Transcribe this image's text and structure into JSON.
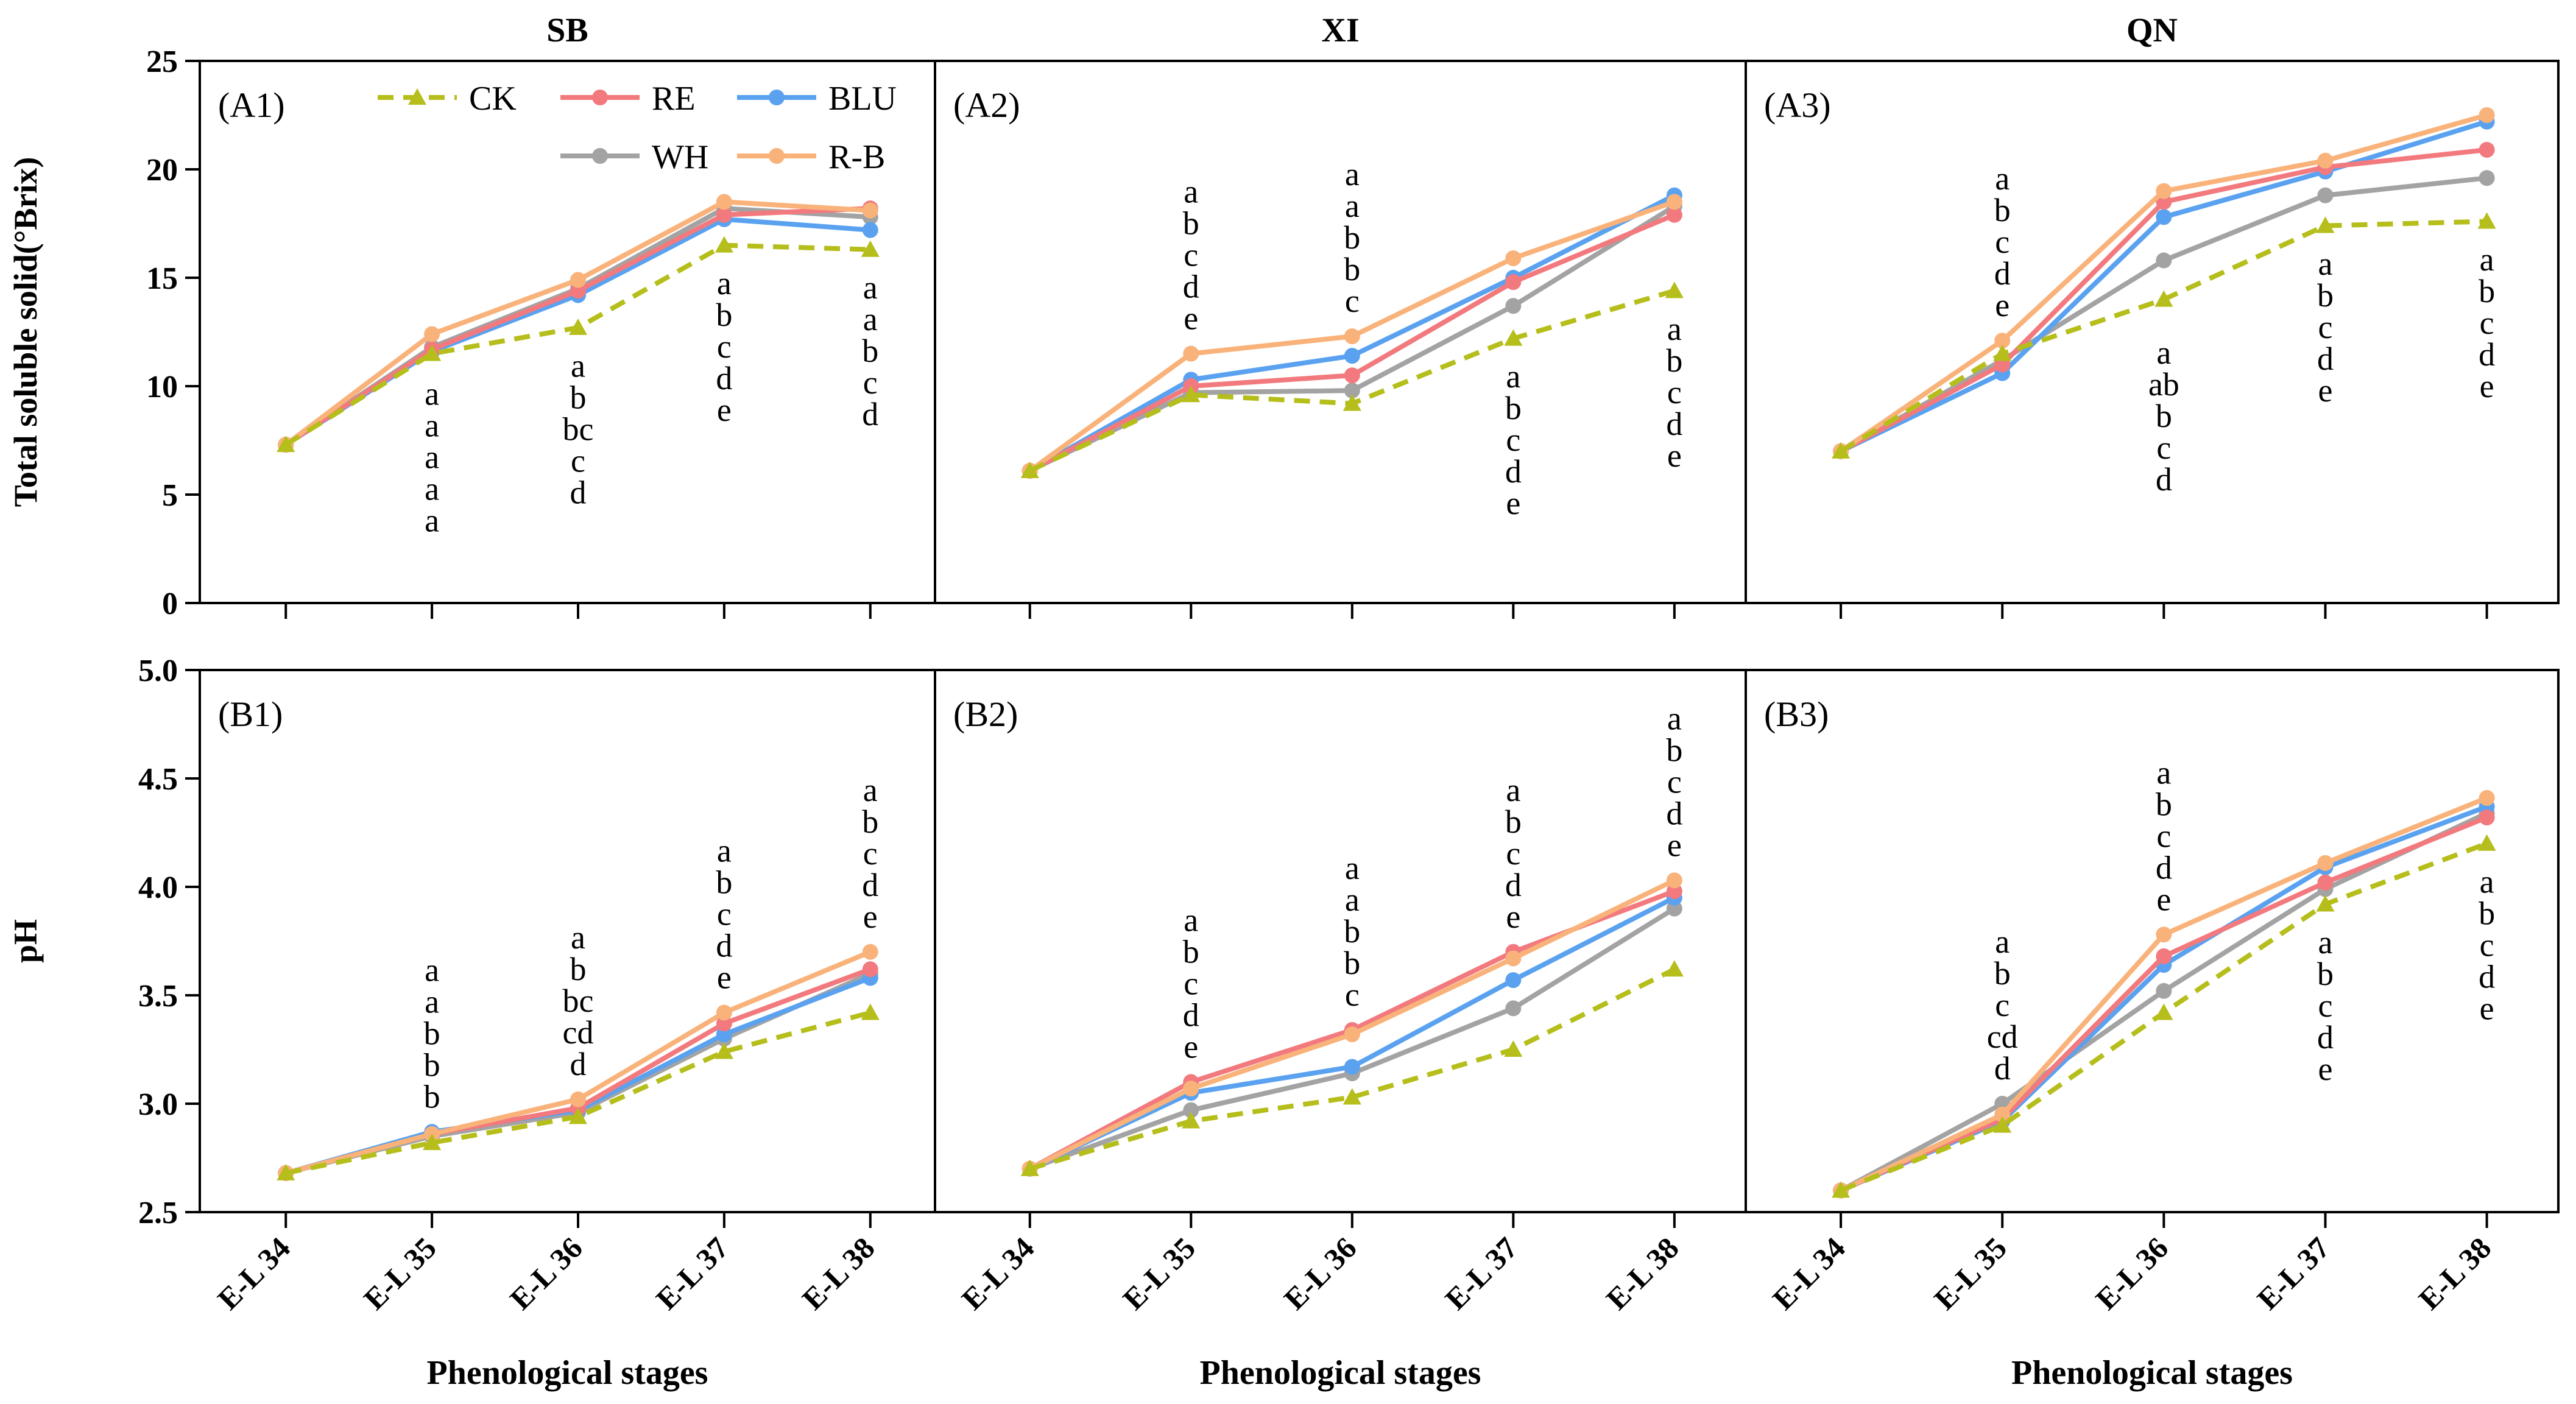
{
  "figure": {
    "x_axis_title": "Phenological stages",
    "legend": [
      {
        "key": "CK",
        "label": "CK"
      },
      {
        "key": "RE",
        "label": "RE"
      },
      {
        "key": "BLU",
        "label": "BLU"
      },
      {
        "key": "WH",
        "label": "WH"
      },
      {
        "key": "R-B",
        "label": "R-B"
      }
    ],
    "series_styles": {
      "CK": {
        "color": "#b5be1a",
        "dashed": true,
        "marker": "triangle"
      },
      "RE": {
        "color": "#f27a7e",
        "dashed": false,
        "marker": "circle"
      },
      "BLU": {
        "color": "#5aa2f0",
        "dashed": false,
        "marker": "circle"
      },
      "WH": {
        "color": "#a3a3a3",
        "dashed": false,
        "marker": "circle"
      },
      "R-B": {
        "color": "#f9b27a",
        "dashed": false,
        "marker": "circle"
      }
    },
    "row_titles": {
      "tss": "Total soluble solid(°Brix)",
      "ph": "pH"
    },
    "y_ticks": {
      "tss": [
        "0",
        "5",
        "10",
        "15",
        "20",
        "25"
      ],
      "ph": [
        "2.5",
        "3.0",
        "3.5",
        "4.0",
        "4.5",
        "5.0"
      ]
    }
  },
  "chart_data": [
    {
      "type": "line",
      "panel": "A1",
      "row": "tss",
      "col": 0,
      "column_title": "SB",
      "panel_label": "(A1)",
      "ylabel": "Total soluble solid(°Brix)",
      "xlabel": "Phenological stages",
      "categories": [
        "E-L 34",
        "E-L 35",
        "E-L 36",
        "E-L 37",
        "E-L 38"
      ],
      "ylim": [
        0,
        25
      ],
      "series": [
        {
          "name": "CK",
          "values": [
            7.3,
            11.5,
            12.7,
            16.5,
            16.3
          ]
        },
        {
          "name": "RE",
          "values": [
            7.3,
            11.7,
            14.4,
            17.9,
            18.2
          ]
        },
        {
          "name": "BLU",
          "values": [
            7.3,
            11.6,
            14.2,
            17.7,
            17.2
          ]
        },
        {
          "name": "WH",
          "values": [
            7.3,
            11.8,
            14.5,
            18.2,
            17.8
          ]
        },
        {
          "name": "R-B",
          "values": [
            7.3,
            12.4,
            14.9,
            18.5,
            18.1
          ]
        }
      ],
      "annotations": [
        {
          "stage": 1,
          "placement": "below",
          "anchor": 11.4,
          "letters": [
            "a",
            "a",
            "a",
            "a",
            "a"
          ]
        },
        {
          "stage": 2,
          "placement": "below",
          "anchor": 12.7,
          "letters": [
            "a",
            "b",
            "bc",
            "c",
            "d"
          ]
        },
        {
          "stage": 3,
          "placement": "below",
          "anchor": 16.5,
          "letters": [
            "a",
            "b",
            "c",
            "d",
            "e"
          ]
        },
        {
          "stage": 4,
          "placement": "below",
          "anchor": 16.3,
          "letters": [
            "a",
            "a",
            "b",
            "c",
            "d"
          ]
        }
      ]
    },
    {
      "type": "line",
      "panel": "A2",
      "row": "tss",
      "col": 1,
      "column_title": "XI",
      "panel_label": "(A2)",
      "ylabel": "Total soluble solid(°Brix)",
      "xlabel": "Phenological stages",
      "categories": [
        "E-L 34",
        "E-L 35",
        "E-L 36",
        "E-L 37",
        "E-L 38"
      ],
      "ylim": [
        0,
        25
      ],
      "series": [
        {
          "name": "CK",
          "values": [
            6.1,
            9.6,
            9.2,
            12.2,
            14.4
          ]
        },
        {
          "name": "RE",
          "values": [
            6.1,
            10.0,
            10.5,
            14.8,
            17.9
          ]
        },
        {
          "name": "BLU",
          "values": [
            6.1,
            10.3,
            11.4,
            15.0,
            18.8
          ]
        },
        {
          "name": "WH",
          "values": [
            6.1,
            9.7,
            9.8,
            13.7,
            18.3
          ]
        },
        {
          "name": "R-B",
          "values": [
            6.1,
            11.5,
            12.3,
            15.9,
            18.5
          ]
        }
      ],
      "annotations": [
        {
          "stage": 1,
          "placement": "above",
          "anchor": 11.5,
          "letters": [
            "a",
            "b",
            "c",
            "d",
            "e"
          ]
        },
        {
          "stage": 2,
          "placement": "above",
          "anchor": 12.3,
          "letters": [
            "a",
            "a",
            "b",
            "b",
            "c"
          ]
        },
        {
          "stage": 3,
          "placement": "below",
          "anchor": 12.2,
          "letters": [
            "a",
            "b",
            "c",
            "d",
            "e"
          ]
        },
        {
          "stage": 4,
          "placement": "below",
          "anchor": 14.4,
          "letters": [
            "a",
            "b",
            "c",
            "d",
            "e"
          ]
        }
      ]
    },
    {
      "type": "line",
      "panel": "A3",
      "row": "tss",
      "col": 2,
      "column_title": "QN",
      "panel_label": "(A3)",
      "ylabel": "Total soluble solid(°Brix)",
      "xlabel": "Phenological stages",
      "categories": [
        "E-L 34",
        "E-L 35",
        "E-L 36",
        "E-L 37",
        "E-L 38"
      ],
      "ylim": [
        0,
        25
      ],
      "series": [
        {
          "name": "CK",
          "values": [
            7.0,
            11.5,
            14.0,
            17.4,
            17.6
          ]
        },
        {
          "name": "RE",
          "values": [
            7.0,
            11.0,
            18.5,
            20.1,
            20.9
          ]
        },
        {
          "name": "BLU",
          "values": [
            7.0,
            10.6,
            17.8,
            19.9,
            22.2
          ]
        },
        {
          "name": "WH",
          "values": [
            7.0,
            11.2,
            15.8,
            18.8,
            19.6
          ]
        },
        {
          "name": "R-B",
          "values": [
            7.0,
            12.1,
            19.0,
            20.4,
            22.5
          ]
        }
      ],
      "annotations": [
        {
          "stage": 1,
          "placement": "above",
          "anchor": 12.1,
          "letters": [
            "a",
            "b",
            "c",
            "d",
            "e"
          ]
        },
        {
          "stage": 2,
          "placement": "below",
          "anchor": 13.3,
          "letters": [
            "a",
            "ab",
            "b",
            "c",
            "d"
          ]
        },
        {
          "stage": 3,
          "placement": "below",
          "anchor": 17.4,
          "letters": [
            "a",
            "b",
            "c",
            "d",
            "e"
          ]
        },
        {
          "stage": 4,
          "placement": "below",
          "anchor": 17.6,
          "letters": [
            "a",
            "b",
            "c",
            "d",
            "e"
          ]
        }
      ]
    },
    {
      "type": "line",
      "panel": "B1",
      "row": "ph",
      "col": 0,
      "column_title": "",
      "panel_label": "(B1)",
      "ylabel": "pH",
      "xlabel": "Phenological stages",
      "categories": [
        "E-L 34",
        "E-L 35",
        "E-L 36",
        "E-L 37",
        "E-L 38"
      ],
      "ylim": [
        2.5,
        5.0
      ],
      "series": [
        {
          "name": "CK",
          "values": [
            2.68,
            2.82,
            2.94,
            3.24,
            3.42
          ]
        },
        {
          "name": "RE",
          "values": [
            2.68,
            2.86,
            2.98,
            3.37,
            3.62
          ]
        },
        {
          "name": "BLU",
          "values": [
            2.68,
            2.87,
            2.97,
            3.32,
            3.58
          ]
        },
        {
          "name": "WH",
          "values": [
            2.68,
            2.85,
            2.96,
            3.3,
            3.6
          ]
        },
        {
          "name": "R-B",
          "values": [
            2.68,
            2.86,
            3.02,
            3.42,
            3.7
          ]
        }
      ],
      "annotations": [
        {
          "stage": 1,
          "placement": "above",
          "anchor": 2.87,
          "letters": [
            "a",
            "a",
            "b",
            "b",
            "b"
          ]
        },
        {
          "stage": 2,
          "placement": "above",
          "anchor": 3.02,
          "letters": [
            "a",
            "b",
            "bc",
            "cd",
            "d"
          ]
        },
        {
          "stage": 3,
          "placement": "above",
          "anchor": 3.42,
          "letters": [
            "a",
            "b",
            "c",
            "d",
            "e"
          ]
        },
        {
          "stage": 4,
          "placement": "above",
          "anchor": 3.7,
          "letters": [
            "a",
            "b",
            "c",
            "d",
            "e"
          ]
        }
      ]
    },
    {
      "type": "line",
      "panel": "B2",
      "row": "ph",
      "col": 1,
      "column_title": "",
      "panel_label": "(B2)",
      "ylabel": "pH",
      "xlabel": "Phenological stages",
      "categories": [
        "E-L 34",
        "E-L 35",
        "E-L 36",
        "E-L 37",
        "E-L 38"
      ],
      "ylim": [
        2.5,
        5.0
      ],
      "series": [
        {
          "name": "CK",
          "values": [
            2.7,
            2.92,
            3.03,
            3.25,
            3.62
          ]
        },
        {
          "name": "RE",
          "values": [
            2.7,
            3.1,
            3.34,
            3.7,
            3.98
          ]
        },
        {
          "name": "BLU",
          "values": [
            2.7,
            3.05,
            3.17,
            3.57,
            3.95
          ]
        },
        {
          "name": "WH",
          "values": [
            2.7,
            2.97,
            3.14,
            3.44,
            3.9
          ]
        },
        {
          "name": "R-B",
          "values": [
            2.7,
            3.07,
            3.32,
            3.67,
            4.03
          ]
        }
      ],
      "annotations": [
        {
          "stage": 1,
          "placement": "above",
          "anchor": 3.1,
          "letters": [
            "a",
            "b",
            "c",
            "d",
            "e"
          ]
        },
        {
          "stage": 2,
          "placement": "above",
          "anchor": 3.34,
          "letters": [
            "a",
            "a",
            "b",
            "b",
            "c"
          ]
        },
        {
          "stage": 3,
          "placement": "above",
          "anchor": 3.7,
          "letters": [
            "a",
            "b",
            "c",
            "d",
            "e"
          ]
        },
        {
          "stage": 4,
          "placement": "above",
          "anchor": 4.03,
          "letters": [
            "a",
            "b",
            "c",
            "d",
            "e"
          ]
        }
      ]
    },
    {
      "type": "line",
      "panel": "B3",
      "row": "ph",
      "col": 2,
      "column_title": "",
      "panel_label": "(B3)",
      "ylabel": "pH",
      "xlabel": "Phenological stages",
      "categories": [
        "E-L 34",
        "E-L 35",
        "E-L 36",
        "E-L 37",
        "E-L 38"
      ],
      "ylim": [
        2.5,
        5.0
      ],
      "series": [
        {
          "name": "CK",
          "values": [
            2.6,
            2.9,
            3.42,
            3.92,
            4.2
          ]
        },
        {
          "name": "RE",
          "values": [
            2.6,
            2.93,
            3.68,
            4.02,
            4.32
          ]
        },
        {
          "name": "BLU",
          "values": [
            2.6,
            2.92,
            3.64,
            4.09,
            4.37
          ]
        },
        {
          "name": "WH",
          "values": [
            2.6,
            3.0,
            3.52,
            3.99,
            4.34
          ]
        },
        {
          "name": "R-B",
          "values": [
            2.6,
            2.95,
            3.78,
            4.11,
            4.41
          ]
        }
      ],
      "annotations": [
        {
          "stage": 1,
          "placement": "above",
          "anchor": 3.0,
          "letters": [
            "a",
            "b",
            "c",
            "cd",
            "d"
          ]
        },
        {
          "stage": 2,
          "placement": "above",
          "anchor": 3.78,
          "letters": [
            "a",
            "b",
            "c",
            "d",
            "e"
          ]
        },
        {
          "stage": 3,
          "placement": "below",
          "anchor": 3.92,
          "letters": [
            "a",
            "b",
            "c",
            "d",
            "e"
          ]
        },
        {
          "stage": 4,
          "placement": "below",
          "anchor": 4.2,
          "letters": [
            "a",
            "b",
            "c",
            "d",
            "e"
          ]
        }
      ]
    }
  ]
}
